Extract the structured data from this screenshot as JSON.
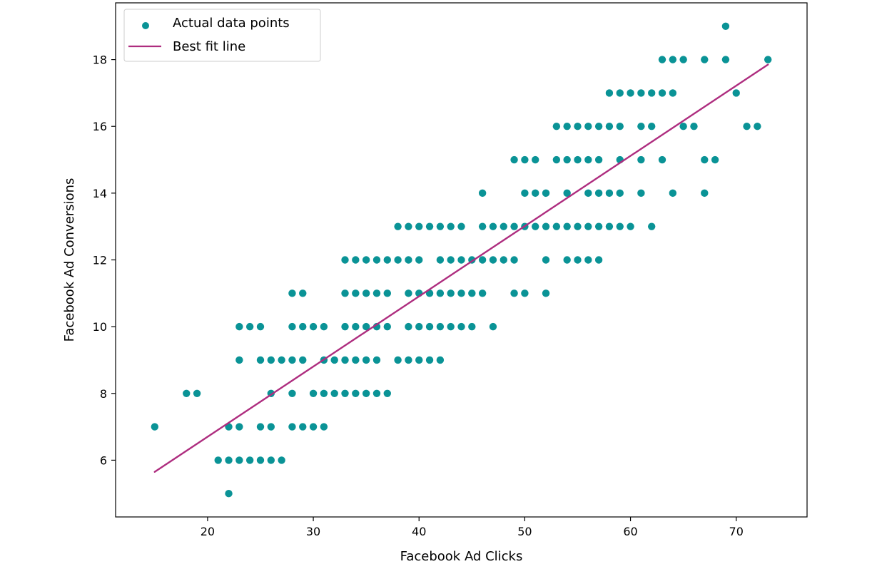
{
  "chart_data": {
    "type": "scatter",
    "xlabel": "Facebook Ad Clicks",
    "ylabel": "Facebook Ad Conversions",
    "xlim": [
      11.3,
      76.7
    ],
    "ylim": [
      4.3,
      19.7
    ],
    "xticks": [
      20,
      30,
      40,
      50,
      60,
      70
    ],
    "yticks": [
      6,
      8,
      10,
      12,
      14,
      16,
      18
    ],
    "grid": false,
    "legend_position": "upper-left",
    "colors": {
      "points": "#0a9396",
      "fit_line": "#ae2d7f"
    },
    "series": [
      {
        "name": "Actual data points",
        "kind": "scatter",
        "points": [
          [
            15,
            7
          ],
          [
            18,
            8
          ],
          [
            19,
            8
          ],
          [
            21,
            6
          ],
          [
            22,
            6
          ],
          [
            22,
            5
          ],
          [
            22,
            7
          ],
          [
            23,
            6
          ],
          [
            23,
            7
          ],
          [
            23,
            9
          ],
          [
            23,
            10
          ],
          [
            24,
            6
          ],
          [
            24,
            10
          ],
          [
            25,
            6
          ],
          [
            25,
            7
          ],
          [
            25,
            9
          ],
          [
            25,
            10
          ],
          [
            26,
            6
          ],
          [
            26,
            7
          ],
          [
            26,
            8
          ],
          [
            26,
            9
          ],
          [
            27,
            6
          ],
          [
            27,
            9
          ],
          [
            28,
            7
          ],
          [
            28,
            8
          ],
          [
            28,
            9
          ],
          [
            28,
            10
          ],
          [
            28,
            11
          ],
          [
            29,
            7
          ],
          [
            29,
            9
          ],
          [
            29,
            10
          ],
          [
            29,
            11
          ],
          [
            30,
            7
          ],
          [
            30,
            8
          ],
          [
            30,
            10
          ],
          [
            31,
            7
          ],
          [
            31,
            8
          ],
          [
            31,
            9
          ],
          [
            31,
            10
          ],
          [
            32,
            8
          ],
          [
            32,
            9
          ],
          [
            33,
            8
          ],
          [
            33,
            9
          ],
          [
            33,
            10
          ],
          [
            33,
            11
          ],
          [
            33,
            12
          ],
          [
            34,
            8
          ],
          [
            34,
            9
          ],
          [
            34,
            10
          ],
          [
            34,
            11
          ],
          [
            34,
            12
          ],
          [
            35,
            8
          ],
          [
            35,
            9
          ],
          [
            35,
            10
          ],
          [
            35,
            11
          ],
          [
            35,
            12
          ],
          [
            36,
            8
          ],
          [
            36,
            9
          ],
          [
            36,
            10
          ],
          [
            36,
            11
          ],
          [
            36,
            12
          ],
          [
            37,
            8
          ],
          [
            37,
            10
          ],
          [
            37,
            11
          ],
          [
            37,
            12
          ],
          [
            38,
            9
          ],
          [
            38,
            12
          ],
          [
            38,
            13
          ],
          [
            39,
            9
          ],
          [
            39,
            10
          ],
          [
            39,
            11
          ],
          [
            39,
            12
          ],
          [
            39,
            13
          ],
          [
            40,
            9
          ],
          [
            40,
            10
          ],
          [
            40,
            11
          ],
          [
            40,
            12
          ],
          [
            40,
            13
          ],
          [
            41,
            9
          ],
          [
            41,
            10
          ],
          [
            41,
            11
          ],
          [
            41,
            13
          ],
          [
            42,
            9
          ],
          [
            42,
            10
          ],
          [
            42,
            11
          ],
          [
            42,
            12
          ],
          [
            42,
            13
          ],
          [
            43,
            10
          ],
          [
            43,
            11
          ],
          [
            43,
            12
          ],
          [
            43,
            13
          ],
          [
            44,
            10
          ],
          [
            44,
            11
          ],
          [
            44,
            12
          ],
          [
            44,
            13
          ],
          [
            45,
            10
          ],
          [
            45,
            11
          ],
          [
            45,
            12
          ],
          [
            46,
            11
          ],
          [
            46,
            12
          ],
          [
            46,
            13
          ],
          [
            46,
            14
          ],
          [
            47,
            10
          ],
          [
            47,
            12
          ],
          [
            47,
            13
          ],
          [
            48,
            12
          ],
          [
            48,
            13
          ],
          [
            49,
            11
          ],
          [
            49,
            12
          ],
          [
            49,
            13
          ],
          [
            49,
            15
          ],
          [
            50,
            11
          ],
          [
            50,
            13
          ],
          [
            50,
            14
          ],
          [
            50,
            15
          ],
          [
            51,
            13
          ],
          [
            51,
            14
          ],
          [
            51,
            15
          ],
          [
            52,
            11
          ],
          [
            52,
            12
          ],
          [
            52,
            13
          ],
          [
            52,
            14
          ],
          [
            53,
            13
          ],
          [
            53,
            15
          ],
          [
            53,
            16
          ],
          [
            54,
            12
          ],
          [
            54,
            13
          ],
          [
            54,
            14
          ],
          [
            54,
            15
          ],
          [
            54,
            16
          ],
          [
            55,
            12
          ],
          [
            55,
            13
          ],
          [
            55,
            15
          ],
          [
            55,
            16
          ],
          [
            56,
            12
          ],
          [
            56,
            13
          ],
          [
            56,
            14
          ],
          [
            56,
            15
          ],
          [
            56,
            16
          ],
          [
            57,
            12
          ],
          [
            57,
            13
          ],
          [
            57,
            14
          ],
          [
            57,
            15
          ],
          [
            57,
            16
          ],
          [
            58,
            13
          ],
          [
            58,
            14
          ],
          [
            58,
            16
          ],
          [
            58,
            17
          ],
          [
            59,
            13
          ],
          [
            59,
            14
          ],
          [
            59,
            15
          ],
          [
            59,
            16
          ],
          [
            59,
            17
          ],
          [
            60,
            13
          ],
          [
            60,
            17
          ],
          [
            61,
            14
          ],
          [
            61,
            15
          ],
          [
            61,
            16
          ],
          [
            61,
            17
          ],
          [
            62,
            13
          ],
          [
            62,
            16
          ],
          [
            62,
            17
          ],
          [
            63,
            15
          ],
          [
            63,
            17
          ],
          [
            63,
            18
          ],
          [
            64,
            14
          ],
          [
            64,
            17
          ],
          [
            64,
            18
          ],
          [
            65,
            16
          ],
          [
            65,
            18
          ],
          [
            66,
            16
          ],
          [
            67,
            14
          ],
          [
            67,
            15
          ],
          [
            67,
            18
          ],
          [
            68,
            15
          ],
          [
            69,
            18
          ],
          [
            69,
            19
          ],
          [
            70,
            17
          ],
          [
            71,
            16
          ],
          [
            72,
            16
          ],
          [
            73,
            18
          ]
        ]
      },
      {
        "name": "Best fit line",
        "kind": "line",
        "points": [
          [
            15,
            5.65
          ],
          [
            73,
            17.85
          ]
        ]
      }
    ]
  }
}
